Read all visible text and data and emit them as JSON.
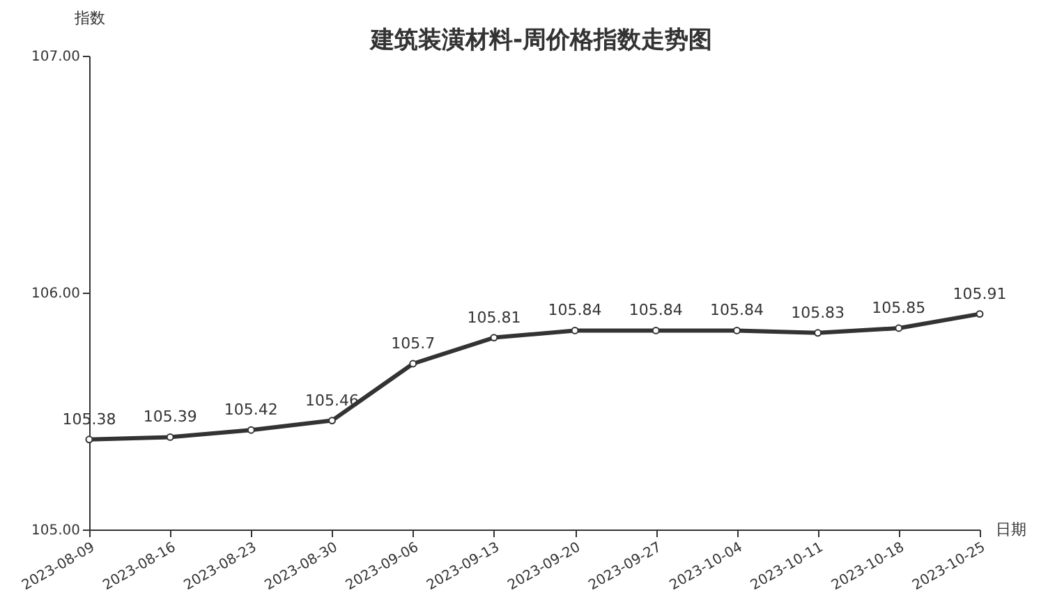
{
  "chart_data": {
    "type": "line",
    "title": "建筑装潢材料-周价格指数走势图",
    "xlabel": "日期",
    "ylabel": "指数",
    "categories": [
      "2023-08-09",
      "2023-08-16",
      "2023-08-23",
      "2023-08-30",
      "2023-09-06",
      "2023-09-13",
      "2023-09-20",
      "2023-09-27",
      "2023-10-04",
      "2023-10-11",
      "2023-10-18",
      "2023-10-25"
    ],
    "series": [
      {
        "color": "#333333",
        "values": [
          105.38,
          105.39,
          105.42,
          105.46,
          105.7,
          105.81,
          105.84,
          105.84,
          105.84,
          105.83,
          105.85,
          105.91
        ]
      }
    ],
    "ylim": [
      105,
      107
    ],
    "yticks": [
      {
        "value": 105,
        "label": "105.00"
      },
      {
        "value": 106,
        "label": "106.00"
      },
      {
        "value": 107,
        "label": "107.00"
      }
    ],
    "grid": false,
    "marker": "circle",
    "line_style": "solid",
    "data_labels": true
  }
}
